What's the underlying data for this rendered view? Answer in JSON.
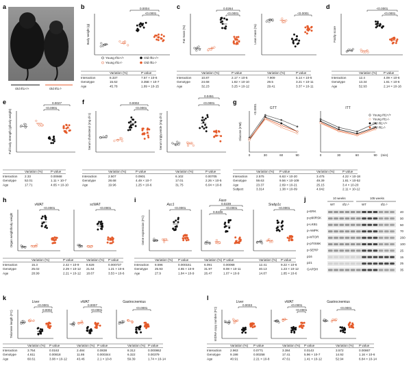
{
  "legend": {
    "young_wt": "Young Ift1+/+",
    "young_ko": "Young Ift1-/-",
    "old_wt": "Old Ift1+/+",
    "old_ko": "Old Ift1-/-"
  },
  "colors": {
    "wt_old": "#111111",
    "ko_old": "#e45a2a",
    "young_fill": "#ffffff",
    "ko_light": "#f3a37f"
  },
  "panel_a": {
    "label_wt": "Old Ift1+/+",
    "label_ko": "Old Ift1-/-"
  },
  "panels": [
    {
      "id": "b",
      "ylabel": "Body weight (g)",
      "brackets": [
        "0.0004",
        "<0.0001"
      ],
      "table": {
        "cols": [
          "Variation (%)",
          "P value"
        ],
        "rows": [
          [
            "Interaction",
            "8.337",
            "7.57 × 10-6"
          ],
          [
            "Genotype",
            "15.62",
            "3.35E × 10-7"
          ],
          [
            "Age",
            "45.78",
            "1.89 × 10-15"
          ]
        ]
      }
    },
    {
      "id": "c",
      "ylabel": "Fat mass (%)",
      "ylabel2": "Lean mass (%)",
      "brackets": [
        "0.0264",
        "<0.0001",
        "<0.0001"
      ],
      "table": {
        "cols": [
          "Variation (%)",
          "P value",
          "Variation (%)",
          "P value"
        ],
        "rows": [
          [
            "Interaction",
            "10.87",
            "2.17 × 10-5",
            "7.909",
            "5.14 × 10-5"
          ],
          [
            "Genotype",
            "24.68",
            "1.82 × 10-10",
            "29.5",
            "3.21 × 10-11"
          ],
          [
            "Age",
            "32.23",
            "3.25 × 10-12",
            "29.41",
            "3.37 × 10-11"
          ]
        ]
      }
    },
    {
      "id": "d",
      "ylabel": "Frailty score",
      "brackets": [
        "<0.0001",
        "<0.0001"
      ],
      "table": {
        "cols": [
          "Variation (%)",
          "P value"
        ],
        "rows": [
          [
            "Interaction",
            "12.4",
            "4.09 × 10-6"
          ],
          [
            "Genotype",
            "13.34",
            "1.61 × 10-6"
          ],
          [
            "Age",
            "52.93",
            "2.14 × 10-16"
          ]
        ]
      }
    },
    {
      "id": "e",
      "ylabel": "Full body strength (g/body weight)",
      "brackets": [
        "0.0027",
        "<0.0001"
      ],
      "table": {
        "cols": [
          "Variation (%)",
          "P value"
        ],
        "rows": [
          [
            "Interaction",
            "2.33",
            "0.00668"
          ],
          [
            "Genotype",
            "52.01",
            "1.11 × 10-7"
          ],
          [
            "Age",
            "17.71",
            "4.65 × 10-10"
          ]
        ]
      }
    },
    {
      "id": "f",
      "ylabel": "Serum cholesterol (mg dl-1)",
      "ylabel2": "Serum triglyceride (mg dl-1)",
      "brackets": [
        "0.0002",
        "<0.0001",
        "0.0451",
        "<0.0001"
      ],
      "table": {
        "cols": [
          "Variation (%)",
          "P value",
          "Variation (%)",
          "P value"
        ],
        "rows": [
          [
            "Interaction",
            "2.507",
            "0.0901",
            "6.102",
            "0.00705"
          ],
          [
            "Genotype",
            "28.68",
            "4.49 × 10-7",
            "17.01",
            "2.26 × 10-5"
          ],
          [
            "Age",
            "19.96",
            "1.25 × 10-6",
            "31.75",
            "6.04 × 10-8"
          ]
        ]
      }
    },
    {
      "id": "g",
      "ylabel": "Glucose (mM)",
      "title1": "GTT",
      "title2": "ITT",
      "xlabel": "(min)",
      "bracket": "<0.0001",
      "table": {
        "cols": [
          "Variation (%)",
          "P value",
          "Variation (%)",
          "P value"
        ],
        "rows": [
          [
            "Interaction",
            "2.575",
            "6.63 × 10-20",
            "3.475",
            "4.22 × 10-18"
          ],
          [
            "Genotype",
            "59.63",
            "9.56 × 10-109",
            "49.39",
            "1.81 × 10-52"
          ],
          [
            "Age",
            "23.37",
            "2.69 × 10-21",
            "25.15",
            "3.4 × 10-20"
          ],
          [
            "Subject",
            "3.314",
            "1.38 × 10-09",
            "4.042",
            "2.11 × 10-12"
          ]
        ]
      }
    },
    {
      "id": "h",
      "ylabel": "Organ weight/body weight",
      "title1": "vWAT",
      "title2": "scWAT",
      "brackets": [
        "<0.0001",
        "<0.0001"
      ],
      "table": {
        "cols": [
          "Variation (%)",
          "P value",
          "Variation (%)",
          "P value"
        ],
        "rows": [
          [
            "Interaction",
            "15.3",
            "2.42 × 10-9",
            "8.628",
            "0.000737"
          ],
          [
            "Genotype",
            "25.02",
            "2.29 × 10-12",
            "21.64",
            "1.21 × 10-6"
          ],
          [
            "Age",
            "28.99",
            "2.21 × 10-12",
            "18.67",
            "3.53 × 10-6"
          ]
        ]
      }
    },
    {
      "id": "i",
      "ylabel": "Gene expression (FC)",
      "title1": "Acc1",
      "title2": "Fasn",
      "title3": "Srebp1c",
      "brackets": [
        "<0.0001",
        "0.0239",
        "<0.0001",
        "0.0239",
        "<0.0001"
      ],
      "table": {
        "cols": [
          "Variation (%)",
          "P value",
          "Variation (%)",
          "P value",
          "Variation (%)",
          "P value"
        ],
        "rows": [
          [
            "Interaction",
            "8.596",
            "0.000151",
            "6.091",
            "0.00068",
            "12.41",
            "9.22 × 10-6"
          ],
          [
            "Genotype",
            "25.93",
            "4.65 × 10-9",
            "31.97",
            "8.08 × 10-11",
            "40.13",
            "1.23 × 10-12"
          ],
          [
            "Age",
            "27.9",
            "1.84 × 10-9",
            "26.47",
            "1.07 × 10-9",
            "14.87",
            "1.85 × 10-6"
          ]
        ]
      }
    },
    {
      "id": "j",
      "group1": "10 weeks",
      "group2": "105 weeks",
      "lanes": [
        "WT",
        "Ift1-/-",
        "WT",
        "Ift1-/-"
      ],
      "rows": [
        "p-ERK",
        "p-p90RSK",
        "p-LKB1",
        "p-AMPK",
        "p-MTOR",
        "p-p70S6K",
        "p-SERP",
        "p16",
        "p21",
        "GAPDH"
      ],
      "mw": [
        "40",
        "90",
        "50",
        "70",
        "260",
        "100",
        "25",
        "15",
        "25",
        "35"
      ]
    },
    {
      "id": "k",
      "ylabel": "Telomere length (FC)",
      "title1": "Liver",
      "title2": "vWAT",
      "title3": "Gastrocnemius",
      "brackets": [
        "<0.0001",
        "0.0002",
        "0.0007",
        "<0.0001",
        "<0.0001"
      ],
      "table": {
        "cols": [
          "Variation (%)",
          "P value",
          "Variation (%)",
          "P value",
          "Variation (%)",
          "P value"
        ],
        "rows": [
          [
            "Interaction",
            "3.754",
            "0.0163",
            "2.484",
            "0.0838",
            "8.312",
            "0.000862"
          ],
          [
            "Genotype",
            "4.611",
            "0.00818",
            "11.86",
            "0.000344",
            "6.322",
            "0.00379"
          ],
          [
            "Age",
            "60.61",
            "3.08 × 10-12",
            "43.46",
            "2.1 × 10-8",
            "59.39",
            "1.74 × 10-14"
          ]
        ]
      }
    },
    {
      "id": "l",
      "ylabel": "mtDNA copy number (FC)",
      "title1": "Liver",
      "title2": "vWAT",
      "title3": "Gastrocnemius",
      "brackets": [
        "0.0033",
        "<0.0001",
        "<0.0001",
        "<0.0001"
      ],
      "table": {
        "cols": [
          "Variation (%)",
          "P value",
          "Variation (%)",
          "P value",
          "Variation (%)",
          "P value"
        ],
        "rows": [
          [
            "Interaction",
            "2.963",
            "0.0771",
            "3.384",
            "0.0143",
            "3.572",
            "0.00867"
          ],
          [
            "Genotype",
            "9.198",
            "0.00258",
            "17.41",
            "5.96 × 10-7",
            "14.92",
            "1.16 × 10-6"
          ],
          [
            "Age",
            "40.91",
            "2.21 × 10-8",
            "47.61",
            "1.41 × 10-12",
            "52.94",
            "6.84 × 10-14"
          ]
        ]
      }
    }
  ]
}
